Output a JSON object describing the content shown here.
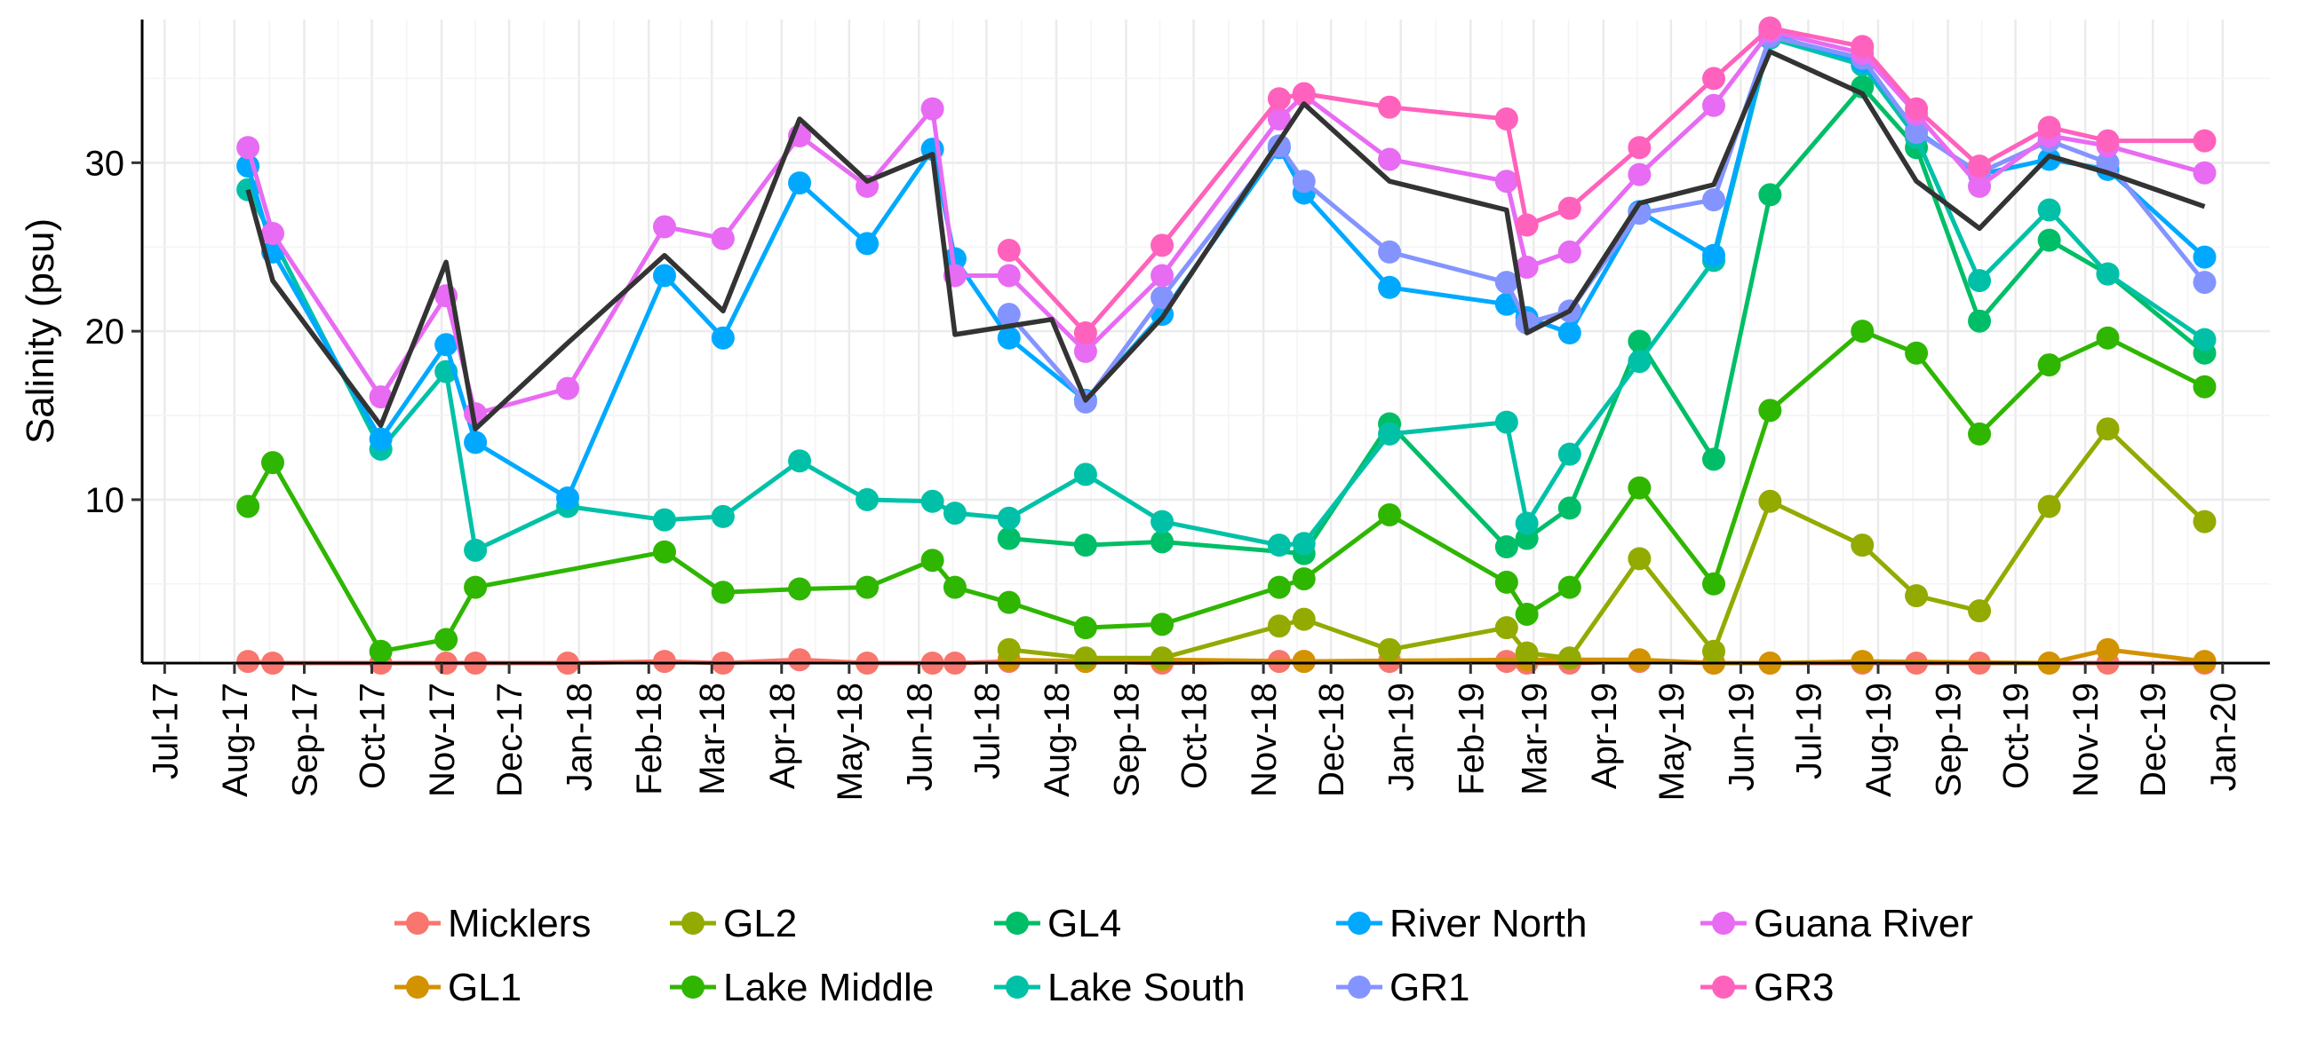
{
  "chart_data": {
    "type": "line",
    "title": "",
    "xlabel": "",
    "ylabel": "Salinity (psu)",
    "x_ticks": [
      "Jul-17",
      "Aug-17",
      "Sep-17",
      "Oct-17",
      "Nov-17",
      "Dec-17",
      "Jan-18",
      "Feb-18",
      "Mar-18",
      "Apr-18",
      "May-18",
      "Jun-18",
      "Jul-18",
      "Aug-18",
      "Sep-18",
      "Oct-18",
      "Nov-18",
      "Dec-18",
      "Jan-19",
      "Feb-19",
      "Mar-19",
      "Apr-19",
      "May-19",
      "Jun-19",
      "Jul-19",
      "Aug-19",
      "Sep-19",
      "Oct-19",
      "Nov-19",
      "Dec-19",
      "Jan-20"
    ],
    "y_ticks": [
      10,
      20,
      30
    ],
    "xlim": [
      "2017-06-21",
      "2020-01-22"
    ],
    "ylim": [
      0.3,
      38.5
    ],
    "grid": true,
    "legend_position": "bottom",
    "series": [
      {
        "name": "Micklers",
        "color": "#F8766D",
        "points": [
          [
            "2017-08-07",
            0.4
          ],
          [
            "2017-08-18",
            0.3
          ],
          [
            "2017-10-05",
            0.3
          ],
          [
            "2017-11-03",
            0.3
          ],
          [
            "2017-11-16",
            0.3
          ],
          [
            "2017-12-27",
            0.3
          ],
          [
            "2018-02-08",
            0.4
          ],
          [
            "2018-03-06",
            0.3
          ],
          [
            "2018-04-09",
            0.5
          ],
          [
            "2018-05-09",
            0.3
          ],
          [
            "2018-06-07",
            0.3
          ],
          [
            "2018-06-17",
            0.3
          ],
          [
            "2018-07-11",
            0.4
          ],
          [
            "2018-08-14",
            0.4
          ],
          [
            "2018-09-17",
            0.3
          ],
          [
            "2018-11-08",
            0.4
          ],
          [
            "2018-11-19",
            0.4
          ],
          [
            "2018-12-27",
            0.4
          ],
          [
            "2019-02-17",
            0.4
          ],
          [
            "2019-02-26",
            0.3
          ],
          [
            "2019-03-17",
            0.3
          ],
          [
            "2019-04-17",
            0.4
          ],
          [
            "2019-05-20",
            0.3
          ],
          [
            "2019-06-14",
            0.3
          ],
          [
            "2019-07-25",
            0.3
          ],
          [
            "2019-08-18",
            0.3
          ],
          [
            "2019-09-15",
            0.3
          ],
          [
            "2019-10-16",
            0.3
          ],
          [
            "2019-11-11",
            0.3
          ],
          [
            "2019-12-24",
            0.3
          ]
        ]
      },
      {
        "name": "GL1",
        "color": "#D39200",
        "points": [
          [
            "2018-07-11",
            0.5
          ],
          [
            "2018-08-14",
            0.4
          ],
          [
            "2018-09-17",
            0.5
          ],
          [
            "2018-11-19",
            0.4
          ],
          [
            "2019-02-26",
            0.5
          ],
          [
            "2019-04-17",
            0.5
          ],
          [
            "2019-05-20",
            0.3
          ],
          [
            "2019-06-14",
            0.3
          ],
          [
            "2019-07-25",
            0.4
          ],
          [
            "2019-10-16",
            0.3
          ],
          [
            "2019-11-11",
            1.1
          ],
          [
            "2019-12-24",
            0.4
          ]
        ]
      },
      {
        "name": "GL2",
        "color": "#93AA00",
        "points": [
          [
            "2018-07-11",
            1.1
          ],
          [
            "2018-08-14",
            0.6
          ],
          [
            "2018-09-17",
            0.6
          ],
          [
            "2018-11-08",
            2.5
          ],
          [
            "2018-11-19",
            2.9
          ],
          [
            "2018-12-27",
            1.1
          ],
          [
            "2019-02-17",
            2.4
          ],
          [
            "2019-02-26",
            0.9
          ],
          [
            "2019-03-17",
            0.6
          ],
          [
            "2019-04-17",
            6.5
          ],
          [
            "2019-05-20",
            1.0
          ],
          [
            "2019-06-14",
            9.9
          ],
          [
            "2019-07-25",
            7.3
          ],
          [
            "2019-08-18",
            4.3
          ],
          [
            "2019-09-15",
            3.4
          ],
          [
            "2019-10-16",
            9.6
          ],
          [
            "2019-11-11",
            14.2
          ],
          [
            "2019-12-24",
            8.7
          ]
        ]
      },
      {
        "name": "Lake Middle",
        "color": "#2FB600",
        "points": [
          [
            "2017-08-07",
            9.6
          ],
          [
            "2017-08-18",
            12.2
          ],
          [
            "2017-10-05",
            1.0
          ],
          [
            "2017-11-03",
            1.7
          ],
          [
            "2017-11-16",
            4.8
          ],
          [
            "2018-02-08",
            6.9
          ],
          [
            "2018-03-06",
            4.5
          ],
          [
            "2018-04-09",
            4.7
          ],
          [
            "2018-05-09",
            4.8
          ],
          [
            "2018-06-07",
            6.4
          ],
          [
            "2018-06-17",
            4.8
          ],
          [
            "2018-07-11",
            3.9
          ],
          [
            "2018-08-14",
            2.4
          ],
          [
            "2018-09-17",
            2.6
          ],
          [
            "2018-11-08",
            4.8
          ],
          [
            "2018-11-19",
            5.3
          ],
          [
            "2018-12-27",
            9.1
          ],
          [
            "2019-02-17",
            5.1
          ],
          [
            "2019-02-26",
            3.2
          ],
          [
            "2019-03-17",
            4.8
          ],
          [
            "2019-04-17",
            10.7
          ],
          [
            "2019-05-20",
            5.0
          ],
          [
            "2019-06-14",
            15.3
          ],
          [
            "2019-07-25",
            20.0
          ],
          [
            "2019-08-18",
            18.7
          ],
          [
            "2019-09-15",
            13.9
          ],
          [
            "2019-10-16",
            18.0
          ],
          [
            "2019-11-11",
            19.6
          ],
          [
            "2019-12-24",
            16.7
          ]
        ]
      },
      {
        "name": "GL4",
        "color": "#00BE67",
        "points": [
          [
            "2018-07-11",
            7.7
          ],
          [
            "2018-08-14",
            7.3
          ],
          [
            "2018-09-17",
            7.5
          ],
          [
            "2018-11-19",
            6.8
          ],
          [
            "2018-12-27",
            14.5
          ],
          [
            "2019-02-17",
            7.2
          ],
          [
            "2019-02-26",
            7.7
          ],
          [
            "2019-03-17",
            9.5
          ],
          [
            "2019-04-17",
            19.4
          ],
          [
            "2019-05-20",
            12.4
          ],
          [
            "2019-06-14",
            28.1
          ],
          [
            "2019-07-25",
            34.5
          ],
          [
            "2019-08-18",
            30.9
          ],
          [
            "2019-09-15",
            20.6
          ],
          [
            "2019-10-16",
            25.4
          ],
          [
            "2019-11-11",
            23.4
          ],
          [
            "2019-12-24",
            18.7
          ]
        ]
      },
      {
        "name": "Lake South",
        "color": "#00C1A7",
        "points": [
          [
            "2017-08-07",
            28.4
          ],
          [
            "2017-10-05",
            13.0
          ],
          [
            "2017-11-03",
            17.6
          ],
          [
            "2017-11-16",
            7.0
          ],
          [
            "2017-12-27",
            9.6
          ],
          [
            "2018-02-08",
            8.8
          ],
          [
            "2018-03-06",
            9.0
          ],
          [
            "2018-04-09",
            12.3
          ],
          [
            "2018-05-09",
            10.0
          ],
          [
            "2018-06-07",
            9.9
          ],
          [
            "2018-06-17",
            9.2
          ],
          [
            "2018-07-11",
            8.9
          ],
          [
            "2018-08-14",
            11.5
          ],
          [
            "2018-09-17",
            8.7
          ],
          [
            "2018-11-08",
            7.3
          ],
          [
            "2018-11-19",
            7.4
          ],
          [
            "2018-12-27",
            13.9
          ],
          [
            "2019-02-17",
            14.6
          ],
          [
            "2019-02-26",
            8.6
          ],
          [
            "2019-03-17",
            12.7
          ],
          [
            "2019-04-17",
            18.2
          ],
          [
            "2019-05-20",
            24.2
          ],
          [
            "2019-06-14",
            37.4
          ],
          [
            "2019-07-25",
            35.8
          ],
          [
            "2019-08-18",
            31.5
          ],
          [
            "2019-09-15",
            23.0
          ],
          [
            "2019-10-16",
            27.2
          ],
          [
            "2019-11-11",
            23.4
          ],
          [
            "2019-12-24",
            19.5
          ]
        ]
      },
      {
        "name": "River North",
        "color": "#00A9FF",
        "points": [
          [
            "2017-08-07",
            29.8
          ],
          [
            "2017-08-18",
            24.7
          ],
          [
            "2017-10-05",
            13.6
          ],
          [
            "2017-11-03",
            19.2
          ],
          [
            "2017-11-16",
            13.4
          ],
          [
            "2017-12-27",
            10.1
          ],
          [
            "2018-02-08",
            23.3
          ],
          [
            "2018-03-06",
            19.6
          ],
          [
            "2018-04-09",
            28.8
          ],
          [
            "2018-05-09",
            25.2
          ],
          [
            "2018-06-07",
            30.8
          ],
          [
            "2018-06-17",
            24.3
          ],
          [
            "2018-07-11",
            19.6
          ],
          [
            "2018-08-14",
            15.9
          ],
          [
            "2018-09-17",
            21.0
          ],
          [
            "2018-11-08",
            30.9
          ],
          [
            "2018-11-19",
            28.2
          ],
          [
            "2018-12-27",
            22.6
          ],
          [
            "2019-02-17",
            21.6
          ],
          [
            "2019-02-26",
            20.8
          ],
          [
            "2019-03-17",
            19.9
          ],
          [
            "2019-04-17",
            27.1
          ],
          [
            "2019-05-20",
            24.5
          ],
          [
            "2019-06-14",
            37.6
          ],
          [
            "2019-07-25",
            36.0
          ],
          [
            "2019-08-18",
            31.9
          ],
          [
            "2019-09-15",
            29.3
          ],
          [
            "2019-10-16",
            30.2
          ],
          [
            "2019-11-11",
            29.6
          ],
          [
            "2019-12-24",
            24.4
          ]
        ]
      },
      {
        "name": "GR1",
        "color": "#8494FF",
        "points": [
          [
            "2018-07-11",
            21.0
          ],
          [
            "2018-08-14",
            15.8
          ],
          [
            "2018-09-17",
            22.0
          ],
          [
            "2018-11-08",
            31.0
          ],
          [
            "2018-11-19",
            28.9
          ],
          [
            "2018-12-27",
            24.7
          ],
          [
            "2019-02-17",
            22.9
          ],
          [
            "2019-02-26",
            20.5
          ],
          [
            "2019-03-17",
            21.2
          ],
          [
            "2019-04-17",
            27.0
          ],
          [
            "2019-05-20",
            27.8
          ],
          [
            "2019-06-14",
            37.5
          ],
          [
            "2019-07-25",
            36.2
          ],
          [
            "2019-08-18",
            31.8
          ],
          [
            "2019-09-15",
            29.4
          ],
          [
            "2019-10-16",
            31.3
          ],
          [
            "2019-11-11",
            30.0
          ],
          [
            "2019-12-24",
            22.9
          ]
        ]
      },
      {
        "name": "Guana River",
        "color": "#E76BF3",
        "points": [
          [
            "2017-08-07",
            30.9
          ],
          [
            "2017-08-18",
            25.8
          ],
          [
            "2017-10-05",
            16.1
          ],
          [
            "2017-11-03",
            22.1
          ],
          [
            "2017-11-16",
            15.1
          ],
          [
            "2017-12-27",
            16.6
          ],
          [
            "2018-02-08",
            26.2
          ],
          [
            "2018-03-06",
            25.5
          ],
          [
            "2018-04-09",
            31.6
          ],
          [
            "2018-05-09",
            28.6
          ],
          [
            "2018-06-07",
            33.2
          ],
          [
            "2018-06-17",
            23.3
          ],
          [
            "2018-07-11",
            23.3
          ],
          [
            "2018-08-14",
            18.8
          ],
          [
            "2018-09-17",
            23.3
          ],
          [
            "2018-11-08",
            32.6
          ],
          [
            "2018-11-19",
            34.0
          ],
          [
            "2018-12-27",
            30.2
          ],
          [
            "2019-02-17",
            28.9
          ],
          [
            "2019-02-26",
            23.8
          ],
          [
            "2019-03-17",
            24.7
          ],
          [
            "2019-04-17",
            29.3
          ],
          [
            "2019-05-20",
            33.4
          ],
          [
            "2019-06-14",
            37.8
          ],
          [
            "2019-07-25",
            36.5
          ],
          [
            "2019-08-18",
            32.9
          ],
          [
            "2019-09-15",
            28.6
          ],
          [
            "2019-10-16",
            31.6
          ],
          [
            "2019-11-11",
            31.0
          ],
          [
            "2019-12-24",
            29.4
          ]
        ]
      },
      {
        "name": "GR3",
        "color": "#FF62BC",
        "points": [
          [
            "2018-07-11",
            24.8
          ],
          [
            "2018-08-14",
            19.9
          ],
          [
            "2018-09-17",
            25.1
          ],
          [
            "2018-11-08",
            33.8
          ],
          [
            "2018-11-19",
            34.1
          ],
          [
            "2018-12-27",
            33.3
          ],
          [
            "2019-02-17",
            32.6
          ],
          [
            "2019-02-26",
            26.3
          ],
          [
            "2019-03-17",
            27.3
          ],
          [
            "2019-04-17",
            30.9
          ],
          [
            "2019-05-20",
            35.0
          ],
          [
            "2019-06-14",
            38.0
          ],
          [
            "2019-07-25",
            36.9
          ],
          [
            "2019-08-18",
            33.2
          ],
          [
            "2019-09-15",
            29.8
          ],
          [
            "2019-10-16",
            32.1
          ],
          [
            "2019-11-11",
            31.3
          ],
          [
            "2019-12-24",
            31.3
          ]
        ]
      }
    ],
    "mean_line": {
      "color": "#333333",
      "points": [
        [
          "2017-08-07",
          28.4
        ],
        [
          "2017-08-18",
          23.0
        ],
        [
          "2017-10-05",
          14.4
        ],
        [
          "2017-11-03",
          24.1
        ],
        [
          "2017-11-16",
          14.2
        ],
        [
          "2017-12-27",
          19.3
        ],
        [
          "2018-02-08",
          24.5
        ],
        [
          "2018-03-06",
          21.2
        ],
        [
          "2018-04-09",
          32.6
        ],
        [
          "2018-05-09",
          28.9
        ],
        [
          "2018-06-07",
          30.5
        ],
        [
          "2018-06-17",
          19.8
        ],
        [
          "2018-07-30",
          20.7
        ],
        [
          "2018-08-14",
          15.9
        ],
        [
          "2018-09-17",
          20.8
        ],
        [
          "2018-11-19",
          33.5
        ],
        [
          "2018-12-27",
          28.9
        ],
        [
          "2019-02-17",
          27.2
        ],
        [
          "2019-02-26",
          19.9
        ],
        [
          "2019-03-17",
          21.2
        ],
        [
          "2019-04-17",
          27.6
        ],
        [
          "2019-05-20",
          28.7
        ],
        [
          "2019-06-14",
          36.6
        ],
        [
          "2019-07-25",
          34.1
        ],
        [
          "2019-08-18",
          28.9
        ],
        [
          "2019-09-15",
          26.1
        ],
        [
          "2019-10-16",
          30.4
        ],
        [
          "2019-11-11",
          29.4
        ],
        [
          "2019-12-24",
          27.4
        ]
      ]
    }
  }
}
